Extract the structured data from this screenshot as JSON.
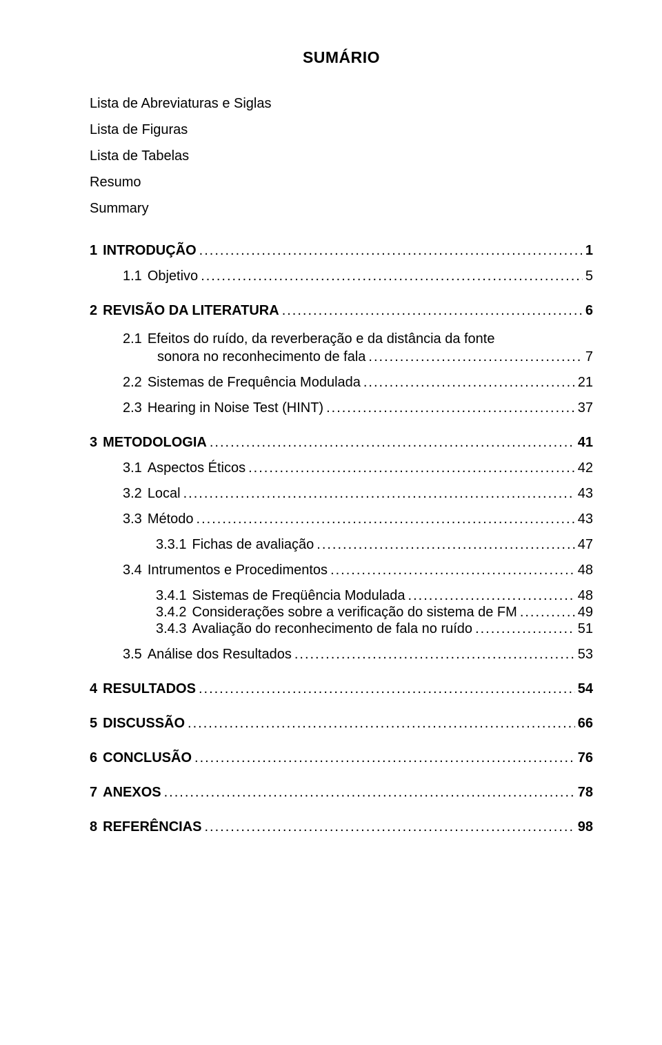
{
  "title": "SUMÁRIO",
  "frontmatter": [
    "Lista de Abreviaturas e Siglas",
    "Lista de Figuras",
    "Lista de Tabelas",
    "Resumo",
    "Summary"
  ],
  "entries": [
    {
      "num": "1",
      "label": "INTRODUÇÃO",
      "page": "1",
      "level": 1,
      "bold": true,
      "gap": "section"
    },
    {
      "num": "1.1",
      "label": "Objetivo",
      "page": "5",
      "level": 2,
      "bold": false,
      "gap": "normal"
    },
    {
      "num": "2",
      "label": "REVISÃO DA LITERATURA",
      "page": "6",
      "level": 1,
      "bold": true,
      "gap": "section"
    },
    {
      "num": "2.1",
      "label_line1": "Efeitos do ruído, da reverberação e da distância da fonte",
      "label_line2": "sonora no reconhecimento de fala",
      "page": "7",
      "level": 2,
      "bold": false,
      "gap": "normal",
      "multiline": true
    },
    {
      "num": "2.2",
      "label": "Sistemas de Frequência Modulada",
      "page": "21",
      "level": 2,
      "bold": false,
      "gap": "normal"
    },
    {
      "num": "2.3",
      "label": "Hearing in Noise Test  (HINT)",
      "page": "37",
      "level": 2,
      "bold": false,
      "gap": "normal"
    },
    {
      "num": "3",
      "label": "METODOLOGIA",
      "page": "41",
      "level": 1,
      "bold": true,
      "gap": "section"
    },
    {
      "num": "3.1",
      "label": "Aspectos Éticos",
      "page": "42",
      "level": 2,
      "bold": false,
      "gap": "normal"
    },
    {
      "num": "3.2",
      "label": "Local",
      "page": "43",
      "level": 2,
      "bold": false,
      "gap": "normal"
    },
    {
      "num": "3.3",
      "label": "Método",
      "page": "43",
      "level": 2,
      "bold": false,
      "gap": "normal"
    },
    {
      "num": "3.3.1",
      "label": "Fichas de avaliação",
      "page": "47",
      "level": 3,
      "bold": false,
      "gap": "tight"
    },
    {
      "num": "3.4",
      "label": "Intrumentos e Procedimentos",
      "page": "48",
      "level": 2,
      "bold": false,
      "gap": "normal"
    },
    {
      "num": "3.4.1",
      "label": "Sistemas de Freqüência Modulada",
      "page": "48",
      "level": 3,
      "bold": false,
      "gap": "tight"
    },
    {
      "num": "3.4.2",
      "label": "Considerações sobre a verificação do sistema de FM",
      "page": "49",
      "level": 3,
      "bold": false,
      "gap": "tight"
    },
    {
      "num": "3.4.3",
      "label": "Avaliação do reconhecimento de fala no ruído",
      "page": "51",
      "level": 3,
      "bold": false,
      "gap": "tight"
    },
    {
      "num": "3.5",
      "label": "Análise dos Resultados",
      "page": "53",
      "level": 2,
      "bold": false,
      "gap": "normal"
    },
    {
      "num": "4",
      "label": "RESULTADOS",
      "page": "54",
      "level": 1,
      "bold": true,
      "gap": "section"
    },
    {
      "num": "5",
      "label": "DISCUSSÃO",
      "page": "66",
      "level": 1,
      "bold": true,
      "gap": "section"
    },
    {
      "num": "6",
      "label": "CONCLUSÃO",
      "page": "76",
      "level": 1,
      "bold": true,
      "gap": "section"
    },
    {
      "num": "7",
      "label": "ANEXOS",
      "page": "78",
      "level": 1,
      "bold": true,
      "gap": "section"
    },
    {
      "num": "8",
      "label": "REFERÊNCIAS",
      "page": "98",
      "level": 1,
      "bold": true,
      "gap": "section"
    }
  ],
  "dots": "........................................................................................................................................................................"
}
